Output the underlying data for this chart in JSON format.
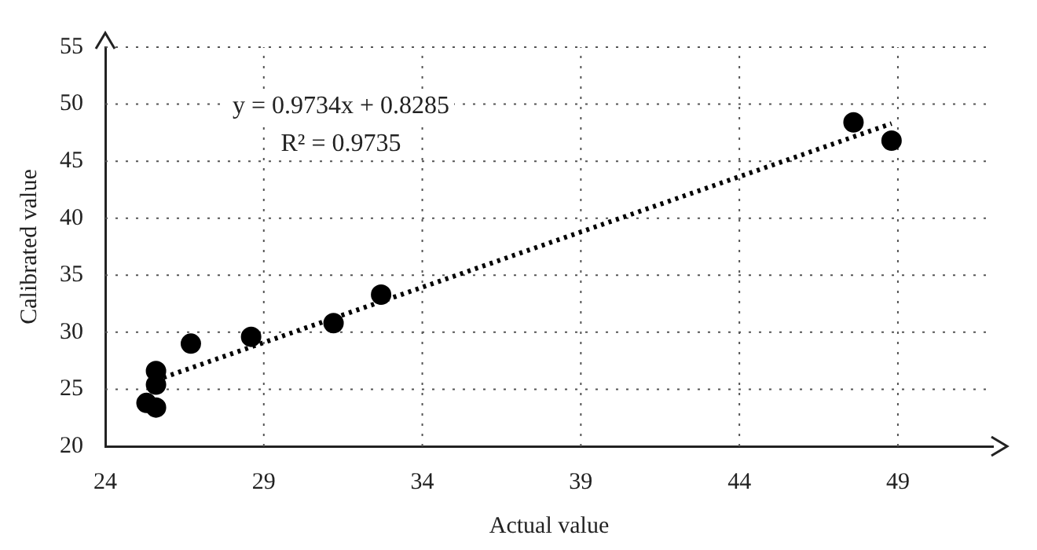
{
  "chart_data": {
    "type": "scatter",
    "xlabel": "Actual value",
    "ylabel": "Calibrated value",
    "series": [
      {
        "type": "scatter",
        "color": "#000000",
        "marker": "circle",
        "x": [
          25.3,
          25.6,
          25.6,
          25.6,
          26.7,
          28.6,
          31.2,
          32.7,
          47.6,
          48.8
        ],
        "values": [
          23.8,
          23.4,
          25.4,
          26.6,
          29.0,
          29.6,
          30.8,
          33.3,
          48.4,
          46.8
        ]
      },
      {
        "type": "line",
        "color": "#000000",
        "line_style": "dotted",
        "marker": "none",
        "x": [
          25.6,
          48.8
        ],
        "values": [
          25.8,
          48.3
        ]
      }
    ],
    "annotations": [
      "y = 0.9734x + 0.8285",
      "R² = 0.9735"
    ],
    "xlim": [
      24,
      52
    ],
    "xticks": [
      24,
      29,
      34,
      39,
      44,
      49
    ],
    "ylim": [
      20,
      55
    ],
    "yticks": [
      20,
      25,
      30,
      35,
      40,
      45,
      50,
      55
    ],
    "grid": true,
    "legend": false
  }
}
